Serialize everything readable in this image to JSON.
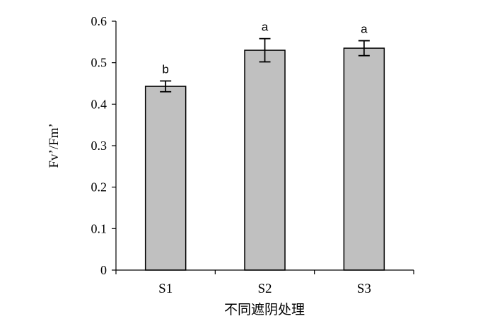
{
  "chart_data": {
    "type": "bar",
    "categories": [
      "S1",
      "S2",
      "S3"
    ],
    "values": [
      0.443,
      0.53,
      0.535
    ],
    "error": [
      0.013,
      0.028,
      0.018
    ],
    "significance": [
      "b",
      "a",
      "a"
    ],
    "title": "",
    "xlabel": "不同遮阴处理",
    "ylabel": "Fv’/Fm’",
    "ylim": [
      0,
      0.6
    ],
    "yticks": [
      "0",
      "0.1",
      "0.2",
      "0.3",
      "0.4",
      "0.5",
      "0.6"
    ],
    "grid": false,
    "legend": "none",
    "bar_color": "#c0c0c0",
    "bar_edge_color": "#000000"
  }
}
